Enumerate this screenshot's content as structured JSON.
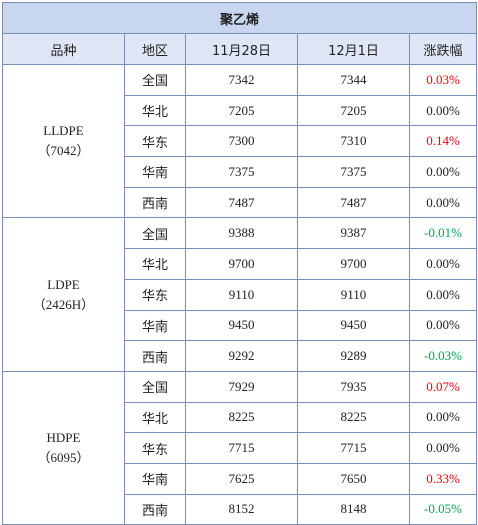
{
  "title": "聚乙烯",
  "headers": [
    "品种",
    "地区",
    "11月28日",
    "12月1日",
    "涨跌幅"
  ],
  "groups": [
    {
      "product": "LLDPE",
      "code": "（7042）",
      "rows": [
        {
          "region": "全国",
          "prev": "7342",
          "curr": "7344",
          "change": "0.03%",
          "trend": "up"
        },
        {
          "region": "华北",
          "prev": "7205",
          "curr": "7205",
          "change": "0.00%",
          "trend": "flat"
        },
        {
          "region": "华东",
          "prev": "7300",
          "curr": "7310",
          "change": "0.14%",
          "trend": "up"
        },
        {
          "region": "华南",
          "prev": "7375",
          "curr": "7375",
          "change": "0.00%",
          "trend": "flat"
        },
        {
          "region": "西南",
          "prev": "7487",
          "curr": "7487",
          "change": "0.00%",
          "trend": "flat"
        }
      ]
    },
    {
      "product": "LDPE",
      "code": "（2426H）",
      "rows": [
        {
          "region": "全国",
          "prev": "9388",
          "curr": "9387",
          "change": "-0.01%",
          "trend": "down"
        },
        {
          "region": "华北",
          "prev": "9700",
          "curr": "9700",
          "change": "0.00%",
          "trend": "flat"
        },
        {
          "region": "华东",
          "prev": "9110",
          "curr": "9110",
          "change": "0.00%",
          "trend": "flat"
        },
        {
          "region": "华南",
          "prev": "9450",
          "curr": "9450",
          "change": "0.00%",
          "trend": "flat"
        },
        {
          "region": "西南",
          "prev": "9292",
          "curr": "9289",
          "change": "-0.03%",
          "trend": "down"
        }
      ]
    },
    {
      "product": "HDPE",
      "code": "（6095）",
      "rows": [
        {
          "region": "全国",
          "prev": "7929",
          "curr": "7935",
          "change": "0.07%",
          "trend": "up"
        },
        {
          "region": "华北",
          "prev": "8225",
          "curr": "8225",
          "change": "0.00%",
          "trend": "flat"
        },
        {
          "region": "华东",
          "prev": "7715",
          "curr": "7715",
          "change": "0.00%",
          "trend": "flat"
        },
        {
          "region": "华南",
          "prev": "7625",
          "curr": "7650",
          "change": "0.33%",
          "trend": "up"
        },
        {
          "region": "西南",
          "prev": "8152",
          "curr": "8148",
          "change": "-0.05%",
          "trend": "down"
        }
      ]
    }
  ],
  "colors": {
    "up": "#ff0000",
    "down": "#00a650",
    "flat": "#222222",
    "title_bg": "#c9d6ef",
    "header_bg": "#dfe7f6",
    "border": "#7a8fb8"
  }
}
